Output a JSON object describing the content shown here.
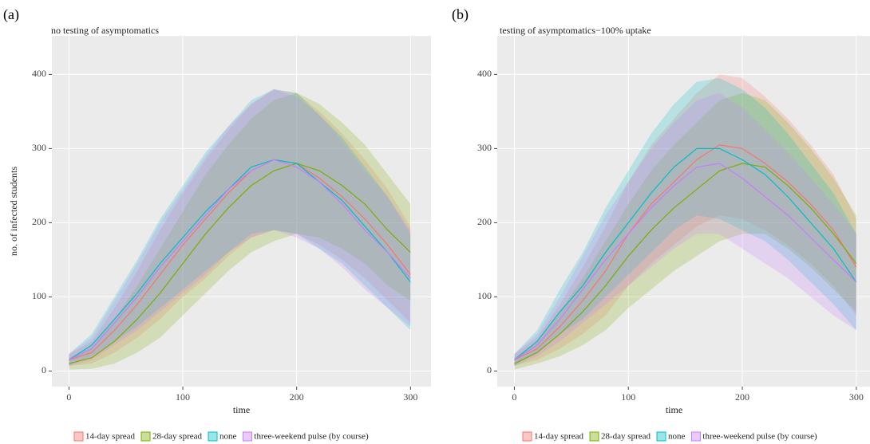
{
  "chart_data": [
    {
      "type": "line",
      "panel_label": "(a)",
      "title": "no testing of asymptomatics",
      "xlabel": "time",
      "ylabel": "no. of infected students",
      "x": [
        0,
        20,
        40,
        60,
        80,
        100,
        120,
        140,
        160,
        180,
        200,
        220,
        240,
        260,
        280,
        300
      ],
      "xlim": [
        -15,
        318
      ],
      "ylim": [
        -21,
        452
      ],
      "xticks": [
        0,
        100,
        200,
        300
      ],
      "yticks": [
        0,
        100,
        200,
        300,
        400
      ],
      "grid": true,
      "series": [
        {
          "name": "14-day spread",
          "color": "#F8766D",
          "values": [
            15,
            25,
            55,
            90,
            130,
            170,
            205,
            240,
            270,
            285,
            280,
            260,
            235,
            205,
            170,
            130
          ],
          "upper": [
            23,
            40,
            85,
            135,
            190,
            240,
            285,
            325,
            360,
            380,
            375,
            350,
            320,
            285,
            245,
            195
          ],
          "lower": [
            7,
            10,
            25,
            45,
            70,
            100,
            125,
            155,
            180,
            190,
            185,
            170,
            150,
            125,
            95,
            65
          ]
        },
        {
          "name": "28-day spread",
          "color": "#7CAE00",
          "values": [
            10,
            18,
            40,
            70,
            105,
            145,
            185,
            220,
            250,
            270,
            280,
            270,
            250,
            225,
            190,
            160
          ],
          "upper": [
            18,
            33,
            70,
            115,
            165,
            215,
            265,
            305,
            340,
            365,
            375,
            360,
            335,
            305,
            265,
            225
          ],
          "lower": [
            2,
            3,
            10,
            25,
            45,
            75,
            105,
            135,
            160,
            175,
            185,
            180,
            165,
            145,
            115,
            95
          ]
        },
        {
          "name": "none",
          "color": "#00BFC4",
          "values": [
            15,
            35,
            70,
            105,
            145,
            180,
            215,
            245,
            275,
            285,
            280,
            255,
            230,
            195,
            160,
            120
          ],
          "upper": [
            23,
            50,
            100,
            150,
            205,
            250,
            295,
            330,
            365,
            380,
            375,
            345,
            315,
            275,
            235,
            185
          ],
          "lower": [
            7,
            20,
            40,
            60,
            85,
            110,
            135,
            160,
            185,
            190,
            185,
            165,
            145,
            115,
            85,
            55
          ]
        },
        {
          "name": "three-weekend pulse (by course)",
          "color": "#C77CFF",
          "values": [
            15,
            30,
            65,
            100,
            140,
            175,
            210,
            245,
            270,
            285,
            275,
            255,
            225,
            190,
            160,
            125
          ],
          "upper": [
            23,
            45,
            95,
            145,
            200,
            245,
            290,
            330,
            360,
            380,
            370,
            345,
            310,
            270,
            235,
            190
          ],
          "lower": [
            7,
            15,
            35,
            55,
            80,
            105,
            130,
            160,
            180,
            190,
            180,
            165,
            140,
            110,
            85,
            60
          ]
        }
      ]
    },
    {
      "type": "line",
      "panel_label": "(b)",
      "title": "testing of asymptomatics−100% uptake",
      "xlabel": "time",
      "x": [
        0,
        20,
        40,
        60,
        80,
        100,
        120,
        140,
        160,
        180,
        200,
        220,
        240,
        260,
        280,
        300
      ],
      "xlim": [
        -15,
        312
      ],
      "ylim": [
        -21,
        452
      ],
      "xticks": [
        0,
        100,
        200,
        300
      ],
      "yticks": [
        0,
        100,
        200,
        300,
        400
      ],
      "grid": true,
      "series": [
        {
          "name": "14-day spread",
          "color": "#F8766D",
          "values": [
            15,
            30,
            60,
            95,
            135,
            185,
            225,
            255,
            285,
            305,
            300,
            280,
            255,
            225,
            190,
            140
          ],
          "upper": [
            23,
            45,
            90,
            140,
            195,
            255,
            305,
            340,
            375,
            400,
            395,
            370,
            340,
            305,
            265,
            205
          ],
          "lower": [
            7,
            15,
            30,
            50,
            75,
            115,
            145,
            170,
            195,
            210,
            205,
            190,
            170,
            145,
            115,
            75
          ]
        },
        {
          "name": "28-day spread",
          "color": "#7CAE00",
          "values": [
            10,
            25,
            50,
            80,
            115,
            155,
            190,
            220,
            245,
            270,
            280,
            275,
            250,
            220,
            185,
            145
          ],
          "upper": [
            18,
            40,
            80,
            125,
            175,
            225,
            270,
            305,
            335,
            365,
            375,
            365,
            335,
            300,
            260,
            210
          ],
          "lower": [
            2,
            10,
            20,
            35,
            55,
            85,
            110,
            135,
            155,
            175,
            185,
            185,
            165,
            140,
            110,
            80
          ]
        },
        {
          "name": "none",
          "color": "#00BFC4",
          "values": [
            15,
            40,
            80,
            115,
            160,
            200,
            240,
            275,
            300,
            300,
            285,
            265,
            235,
            200,
            165,
            120
          ],
          "upper": [
            23,
            55,
            110,
            160,
            220,
            270,
            320,
            360,
            390,
            395,
            380,
            355,
            320,
            280,
            240,
            185
          ],
          "lower": [
            7,
            25,
            50,
            70,
            100,
            130,
            160,
            190,
            210,
            205,
            190,
            175,
            150,
            120,
            90,
            55
          ]
        },
        {
          "name": "three-weekend pulse (by course)",
          "color": "#C77CFF",
          "values": [
            15,
            35,
            70,
            110,
            150,
            185,
            220,
            250,
            275,
            280,
            260,
            235,
            210,
            180,
            150,
            120
          ],
          "upper": [
            23,
            50,
            100,
            155,
            210,
            255,
            300,
            335,
            365,
            375,
            355,
            325,
            295,
            260,
            225,
            185
          ],
          "lower": [
            7,
            20,
            40,
            65,
            90,
            115,
            140,
            165,
            185,
            185,
            165,
            145,
            125,
            100,
            75,
            55
          ]
        }
      ]
    }
  ]
}
